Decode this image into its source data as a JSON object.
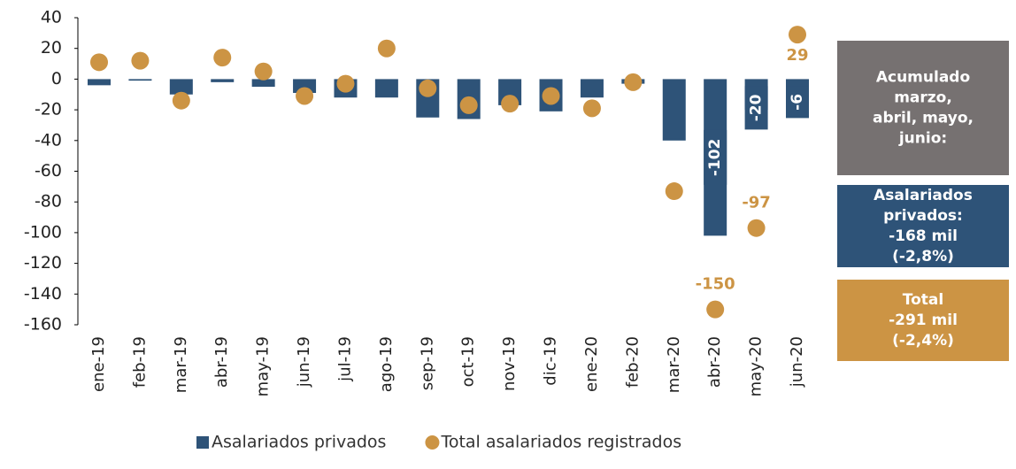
{
  "chart_data": {
    "type": "bar_scatter",
    "categories": [
      "ene-19",
      "feb-19",
      "mar-19",
      "abr-19",
      "may-19",
      "jun-19",
      "jul-19",
      "ago-19",
      "sep-19",
      "oct-19",
      "nov-19",
      "dic-19",
      "ene-20",
      "feb-20",
      "mar-20",
      "abr-20",
      "may-20",
      "jun-20"
    ],
    "series": [
      {
        "name": "Asalariados privados",
        "color": "#2e5378",
        "kind": "bar",
        "values": [
          -4,
          -1,
          -10,
          -2,
          -5,
          -9,
          -12,
          -12,
          -25,
          -26,
          -17,
          -21,
          -12,
          -3,
          -40,
          -102,
          -20,
          -6
        ],
        "value_labels": [
          null,
          null,
          null,
          null,
          null,
          null,
          null,
          null,
          null,
          null,
          null,
          null,
          null,
          null,
          null,
          "-102",
          "-20",
          "-6"
        ]
      },
      {
        "name": "Total asalariados registrados",
        "color": "#cc9444",
        "kind": "dot",
        "values": [
          11,
          12,
          -14,
          14,
          5,
          -11,
          -3,
          20,
          -6,
          -17,
          -16,
          -11,
          -19,
          -2,
          -73,
          -150,
          -97,
          29
        ],
        "value_labels": [
          null,
          null,
          null,
          null,
          null,
          null,
          null,
          null,
          null,
          null,
          null,
          null,
          null,
          null,
          null,
          "-150",
          "-97",
          "29"
        ]
      }
    ],
    "ylim": [
      -160,
      40
    ],
    "yticks": [
      -160,
      -140,
      -120,
      -100,
      -80,
      -60,
      -40,
      -20,
      0,
      20,
      40
    ],
    "grid": false,
    "legend": "bottom",
    "boxes": [
      {
        "color": "#767171",
        "lines": [
          "Acumulado",
          "marzo,",
          "abril, mayo,",
          "junio:"
        ]
      },
      {
        "color": "#2e5378",
        "lines": [
          "Asalariados",
          "privados:",
          "-168 mil",
          "(-2,8%)"
        ]
      },
      {
        "color": "#cc9444",
        "lines": [
          "Total",
          "-291 mil",
          "(-2,4%)"
        ]
      }
    ]
  }
}
